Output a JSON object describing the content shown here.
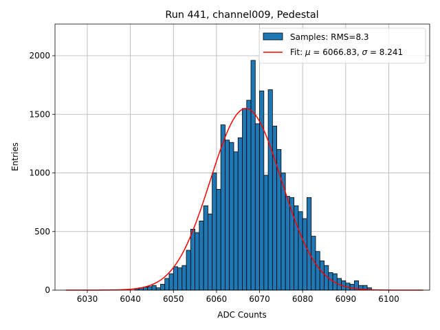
{
  "chart_data": {
    "type": "bar",
    "title": "Run 441, channel009, Pedestal",
    "xlabel": "ADC Counts",
    "ylabel": "Entries",
    "xlim": [
      6022.5,
      6109.5
    ],
    "ylim": [
      0,
      2270
    ],
    "xticks": [
      6030,
      6040,
      6050,
      6060,
      6070,
      6080,
      6090,
      6100
    ],
    "yticks": [
      0,
      500,
      1000,
      1500,
      2000
    ],
    "grid": true,
    "legend_position": "top-right",
    "bar_color": "#1f77b4",
    "fit_color": "#ff0000",
    "histogram": {
      "name": "Samples: RMS=8.3",
      "bin_start": 6041,
      "bin_width": 1,
      "values": [
        12,
        20,
        25,
        30,
        40,
        20,
        50,
        100,
        140,
        200,
        190,
        210,
        340,
        520,
        490,
        590,
        720,
        650,
        1000,
        860,
        1410,
        1280,
        1260,
        1180,
        1300,
        1550,
        1620,
        1960,
        1420,
        1700,
        980,
        1710,
        1400,
        1200,
        1000,
        800,
        790,
        720,
        670,
        610,
        790,
        460,
        330,
        250,
        210,
        150,
        140,
        100,
        80,
        60,
        50,
        80,
        40,
        40,
        20
      ]
    },
    "fit": {
      "name_prefix": "Fit: ",
      "name_mu": "μ",
      "name_mu_value": " = 6066.83, ",
      "name_sigma": "σ",
      "name_sigma_value": " = 8.241",
      "mu": 6066.83,
      "sigma": 8.241,
      "amplitude": 1550,
      "x_range": [
        6025,
        6108
      ]
    }
  }
}
